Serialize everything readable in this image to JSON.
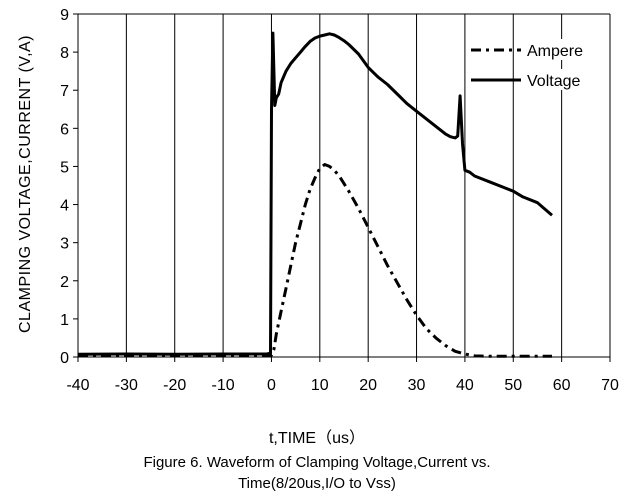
{
  "chart_data": {
    "type": "line",
    "xlabel": "t,TIME（us）",
    "ylabel": "CLAMPING VOLTAGE,CURRENT  (V,A)",
    "title": "Figure 6. Waveform of Clamping Voltage,Current vs.",
    "subtitle": "Time(8/20us,I/O  to Vss)",
    "xlim": [
      -40,
      70
    ],
    "ylim": [
      0,
      9
    ],
    "xticks": [
      -40,
      -30,
      -20,
      -10,
      0,
      10,
      20,
      30,
      40,
      50,
      60,
      70
    ],
    "yticks": [
      0,
      1,
      2,
      3,
      4,
      5,
      6,
      7,
      8,
      9
    ],
    "grid": "vertical",
    "legend_position": "top-right",
    "series": [
      {
        "name": "Ampere",
        "style": "dash-dot",
        "x": [
          -40,
          -30,
          -20,
          -10,
          -1,
          0,
          0.5,
          1,
          2,
          3,
          4,
          5,
          6,
          7,
          8,
          9,
          10,
          11,
          12,
          13,
          14,
          15,
          16,
          18,
          20,
          22,
          24,
          26,
          28,
          30,
          32,
          34,
          36,
          38,
          40,
          42,
          45,
          50,
          55,
          58
        ],
        "y": [
          0.05,
          0.05,
          0.05,
          0.05,
          0.05,
          0.05,
          0.2,
          0.6,
          1.2,
          1.8,
          2.4,
          3.0,
          3.5,
          4.0,
          4.4,
          4.7,
          4.95,
          5.05,
          5.0,
          4.9,
          4.75,
          4.55,
          4.35,
          3.9,
          3.4,
          2.9,
          2.4,
          1.95,
          1.5,
          1.1,
          0.75,
          0.5,
          0.3,
          0.15,
          0.08,
          0.03,
          0.02,
          0.02,
          0.02,
          0.02
        ]
      },
      {
        "name": "Voltage",
        "style": "solid",
        "x": [
          -40,
          -30,
          -20,
          -10,
          -1,
          -0.2,
          0,
          0.3,
          0.7,
          1,
          1.5,
          2,
          3,
          4,
          5,
          6,
          7,
          8,
          9,
          10,
          11,
          12,
          13,
          14,
          15,
          16,
          18,
          20,
          22,
          24,
          26,
          28,
          30,
          32,
          34,
          36,
          37,
          38,
          38.5,
          39,
          39.5,
          40,
          41,
          42,
          45,
          48,
          50,
          52,
          55,
          58
        ],
        "y": [
          0.07,
          0.08,
          0.07,
          0.08,
          0.08,
          0.1,
          6.5,
          8.5,
          6.6,
          6.8,
          6.9,
          7.2,
          7.5,
          7.7,
          7.85,
          8.0,
          8.15,
          8.28,
          8.37,
          8.42,
          8.45,
          8.48,
          8.45,
          8.38,
          8.3,
          8.2,
          7.95,
          7.6,
          7.35,
          7.15,
          6.9,
          6.65,
          6.45,
          6.25,
          6.05,
          5.85,
          5.78,
          5.75,
          5.8,
          6.85,
          5.6,
          4.9,
          4.85,
          4.75,
          4.6,
          4.45,
          4.35,
          4.2,
          4.05,
          3.72
        ]
      }
    ]
  }
}
